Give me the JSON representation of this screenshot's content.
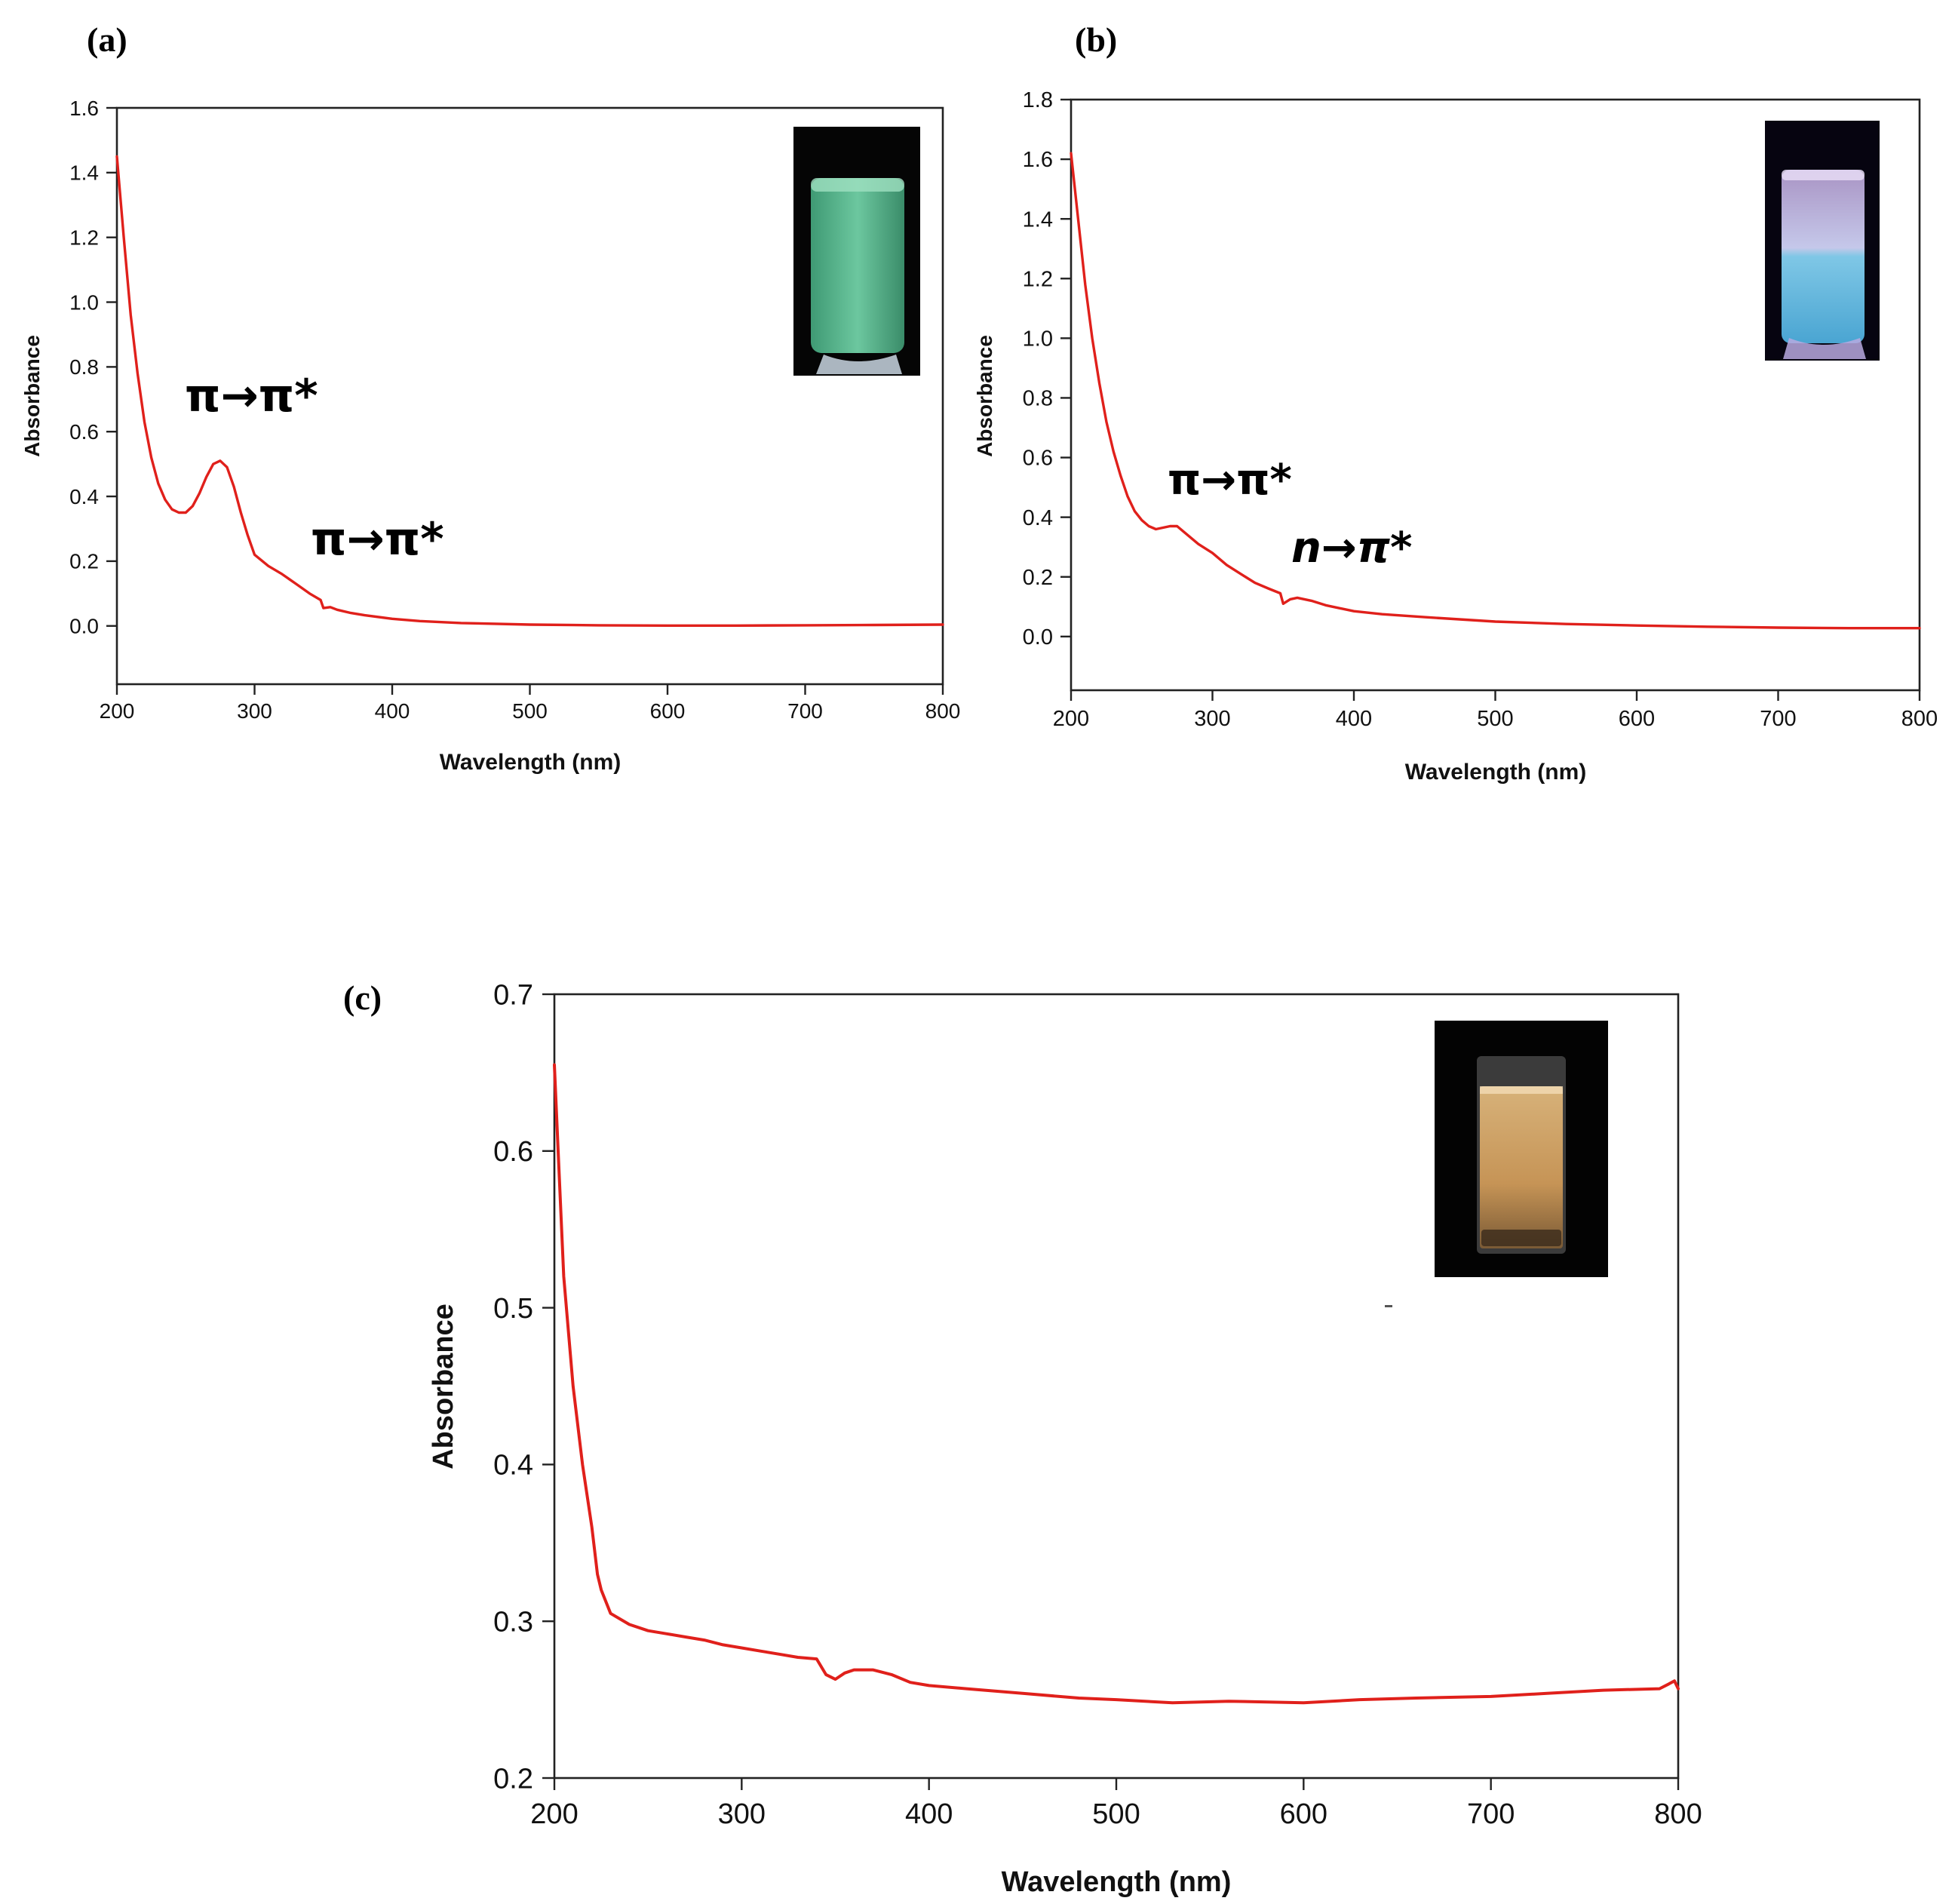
{
  "figure": {
    "panels": [
      {
        "label": "(a)",
        "annotations": [
          "π→π*",
          "π→π*"
        ],
        "inset": "vial-green-fluorescence-photo"
      },
      {
        "label": "(b)",
        "annotations": [
          "π→π*",
          "n→π*"
        ],
        "inset": "vial-blue-fluorescence-photo"
      },
      {
        "label": "(c)",
        "annotations": [],
        "inset": "vial-amber-solution-photo"
      }
    ]
  },
  "chart_data": [
    {
      "type": "line",
      "title": "",
      "xlabel": "Wavelength (nm)",
      "ylabel": "Absorbance",
      "xlim": [
        200,
        800
      ],
      "ylim": [
        -0.18,
        1.6
      ],
      "xticks": [
        "200",
        "300",
        "400",
        "500",
        "600",
        "700",
        "800"
      ],
      "yticks": [
        "0.0",
        "0.2",
        "0.4",
        "0.6",
        "0.8",
        "1.0",
        "1.2",
        "1.4",
        "1.6"
      ],
      "grid": false,
      "color": "#e0201b",
      "series": [
        {
          "x": [
            200,
            205,
            210,
            215,
            220,
            225,
            230,
            235,
            240,
            245,
            250,
            255,
            260,
            265,
            270,
            275,
            280,
            285,
            290,
            295,
            300,
            310,
            320,
            330,
            340,
            348,
            350,
            355,
            360,
            370,
            380,
            400,
            420,
            450,
            500,
            550,
            600,
            650,
            700,
            750,
            800
          ],
          "y": [
            1.45,
            1.2,
            0.96,
            0.78,
            0.63,
            0.52,
            0.44,
            0.39,
            0.36,
            0.35,
            0.35,
            0.37,
            0.41,
            0.46,
            0.5,
            0.51,
            0.49,
            0.43,
            0.35,
            0.28,
            0.22,
            0.185,
            0.16,
            0.13,
            0.1,
            0.08,
            0.055,
            0.058,
            0.05,
            0.04,
            0.033,
            0.022,
            0.015,
            0.009,
            0.004,
            0.002,
            0.001,
            0.001,
            0.002,
            0.003,
            0.004
          ]
        }
      ]
    },
    {
      "type": "line",
      "title": "",
      "xlabel": "Wavelength (nm)",
      "ylabel": "Absorbance",
      "xlim": [
        200,
        800
      ],
      "ylim": [
        -0.18,
        1.8
      ],
      "xticks": [
        "200",
        "300",
        "400",
        "500",
        "600",
        "700",
        "800"
      ],
      "yticks": [
        "0.0",
        "0.2",
        "0.4",
        "0.6",
        "0.8",
        "1.0",
        "1.2",
        "1.4",
        "1.6",
        "1.8"
      ],
      "grid": false,
      "color": "#e0201b",
      "series": [
        {
          "x": [
            200,
            205,
            210,
            215,
            220,
            225,
            230,
            235,
            240,
            245,
            250,
            255,
            260,
            265,
            270,
            275,
            280,
            290,
            300,
            310,
            320,
            330,
            340,
            348,
            350,
            355,
            360,
            370,
            380,
            400,
            420,
            450,
            500,
            550,
            600,
            650,
            700,
            750,
            800
          ],
          "y": [
            1.62,
            1.4,
            1.18,
            1.0,
            0.85,
            0.72,
            0.62,
            0.54,
            0.47,
            0.42,
            0.39,
            0.37,
            0.36,
            0.365,
            0.37,
            0.37,
            0.35,
            0.31,
            0.28,
            0.24,
            0.21,
            0.18,
            0.16,
            0.145,
            0.11,
            0.125,
            0.13,
            0.12,
            0.105,
            0.085,
            0.075,
            0.065,
            0.05,
            0.042,
            0.037,
            0.033,
            0.03,
            0.028,
            0.028
          ]
        }
      ]
    },
    {
      "type": "line",
      "title": "",
      "xlabel": "Wavelength (nm)",
      "ylabel": "Absorbance",
      "xlim": [
        200,
        800
      ],
      "ylim": [
        0.2,
        0.7
      ],
      "xticks": [
        "200",
        "300",
        "400",
        "500",
        "600",
        "700",
        "800"
      ],
      "yticks": [
        "0.2",
        "0.3",
        "0.4",
        "0.5",
        "0.6",
        "0.7"
      ],
      "grid": false,
      "color": "#e0201b",
      "series": [
        {
          "x": [
            200,
            202,
            205,
            210,
            215,
            220,
            223,
            225,
            230,
            240,
            250,
            260,
            270,
            280,
            290,
            300,
            310,
            320,
            330,
            340,
            345,
            350,
            355,
            360,
            370,
            380,
            390,
            400,
            420,
            450,
            480,
            500,
            530,
            560,
            600,
            630,
            660,
            700,
            730,
            760,
            790,
            795,
            798,
            800
          ],
          "y": [
            0.655,
            0.6,
            0.52,
            0.45,
            0.4,
            0.36,
            0.33,
            0.32,
            0.305,
            0.298,
            0.294,
            0.292,
            0.29,
            0.288,
            0.285,
            0.283,
            0.281,
            0.279,
            0.277,
            0.276,
            0.266,
            0.263,
            0.267,
            0.269,
            0.269,
            0.266,
            0.261,
            0.259,
            0.257,
            0.254,
            0.251,
            0.25,
            0.248,
            0.249,
            0.248,
            0.25,
            0.251,
            0.252,
            0.254,
            0.256,
            0.257,
            0.26,
            0.262,
            0.257
          ]
        }
      ]
    }
  ]
}
